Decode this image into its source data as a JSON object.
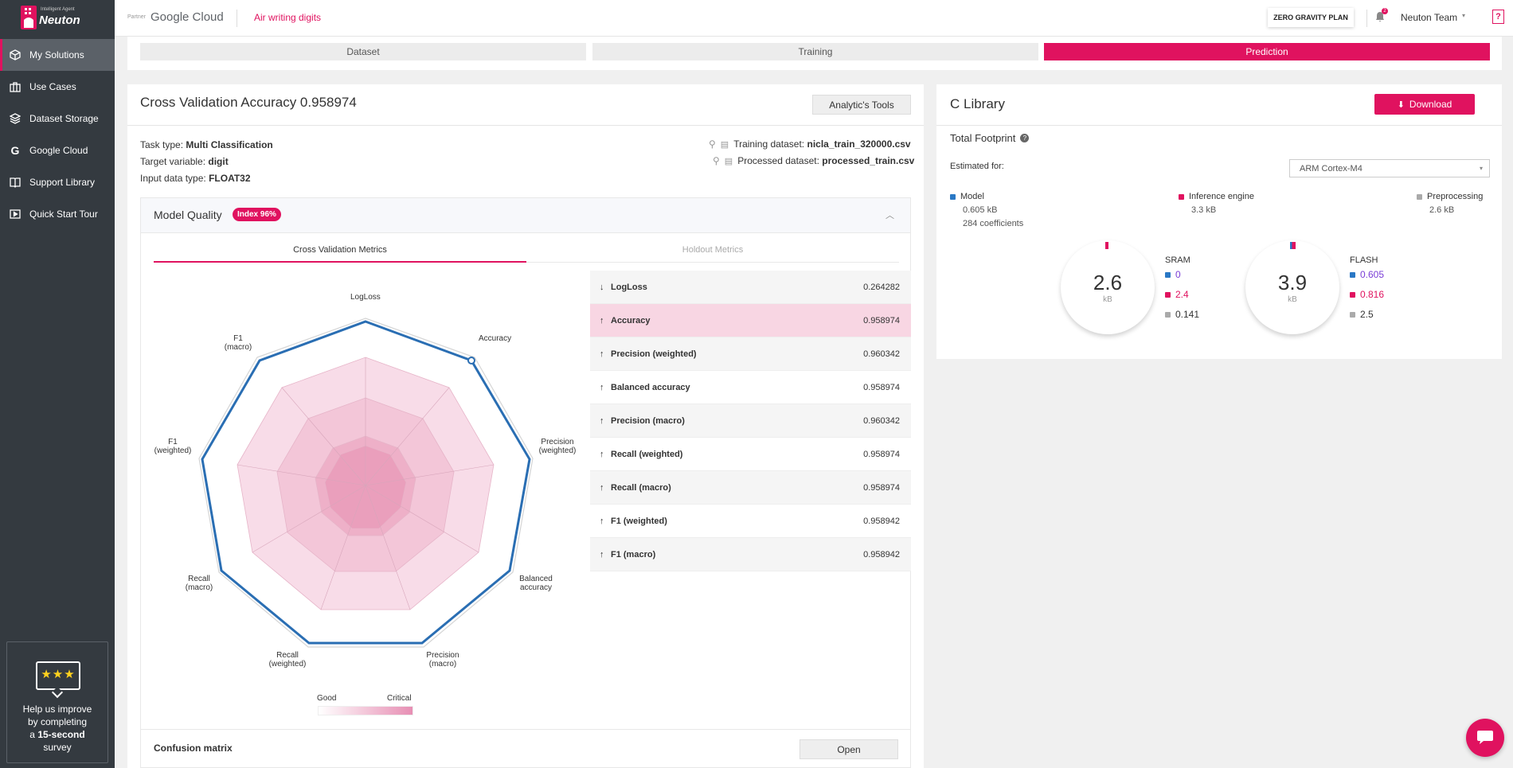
{
  "app": {
    "logo_tagline": "Intelligent Agent",
    "logo_name": "Neuton",
    "partner_label": "Partner",
    "partner_name": "Google Cloud",
    "project_name": "Air writing digits",
    "plan_label": "ZERO GRAVITY PLAN",
    "notification_count": "2",
    "team_name": "Neuton Team",
    "help_label": "?"
  },
  "sidebar": {
    "items": [
      {
        "label": "My Solutions",
        "icon": "cube-icon"
      },
      {
        "label": "Use Cases",
        "icon": "briefcase-icon"
      },
      {
        "label": "Dataset Storage",
        "icon": "layers-icon"
      },
      {
        "label": "Google Cloud",
        "icon": "google-icon"
      },
      {
        "label": "Support Library",
        "icon": "book-icon"
      },
      {
        "label": "Quick Start Tour",
        "icon": "play-icon"
      }
    ],
    "survey": {
      "line1": "Help us improve",
      "line2": "by completing",
      "line3_prefix": "a",
      "line3_bold": "15-second",
      "line4": "survey"
    }
  },
  "tabs": [
    "Dataset",
    "Training",
    "Prediction"
  ],
  "validation": {
    "title": "Cross Validation Accuracy 0.958974",
    "tools_button": "Analytic's Tools",
    "task_type_label": "Task type:",
    "task_type_value": "Multi Classification",
    "target_label": "Target variable:",
    "target_value": "digit",
    "input_type_label": "Input data type:",
    "input_type_value": "FLOAT32",
    "training_dataset_label": "Training dataset:",
    "training_dataset_value": "nicla_train_320000.csv",
    "processed_dataset_label": "Processed dataset:",
    "processed_dataset_value": "processed_train.csv"
  },
  "model_quality": {
    "title": "Model Quality",
    "badge": "Index 96%",
    "tab_active": "Cross Validation Metrics",
    "tab_inactive": "Holdout Metrics",
    "radar_labels": [
      "LogLoss",
      "Accuracy",
      "Precision (weighted)",
      "Balanced accuracy",
      "Precision (macro)",
      "Recall (weighted)",
      "Recall (macro)",
      "F1 (weighted)",
      "F1 (macro)"
    ],
    "scale_good": "Good",
    "scale_critical": "Critical",
    "metrics": [
      {
        "name": "LogLoss",
        "value": "0.264282",
        "dir": "down"
      },
      {
        "name": "Accuracy",
        "value": "0.958974",
        "dir": "up"
      },
      {
        "name": "Precision (weighted)",
        "value": "0.960342",
        "dir": "up"
      },
      {
        "name": "Balanced accuracy",
        "value": "0.958974",
        "dir": "up"
      },
      {
        "name": "Precision (macro)",
        "value": "0.960342",
        "dir": "up"
      },
      {
        "name": "Recall (weighted)",
        "value": "0.958974",
        "dir": "up"
      },
      {
        "name": "Recall (macro)",
        "value": "0.958974",
        "dir": "up"
      },
      {
        "name": "F1 (weighted)",
        "value": "0.958942",
        "dir": "up"
      },
      {
        "name": "F1 (macro)",
        "value": "0.958942",
        "dir": "up"
      }
    ],
    "confusion_label": "Confusion matrix",
    "open_button": "Open"
  },
  "c_library": {
    "title": "C Library",
    "download_button": "Download",
    "footprint_title": "Total Footprint",
    "estimated_label": "Estimated for:",
    "estimated_value": "ARM Cortex-M4",
    "model_label": "Model",
    "model_size": "0.605 kB",
    "model_coeffs": "284 coefficients",
    "engine_label": "Inference engine",
    "engine_size": "3.3 kB",
    "pre_label": "Preprocessing",
    "pre_size": "2.6 kB",
    "sram_value": "2.6",
    "sram_unit": "kB",
    "sram_label": "SRAM",
    "sram_items": [
      "0",
      "2.4",
      "0.141"
    ],
    "flash_value": "3.9",
    "flash_unit": "kB",
    "flash_label": "FLASH",
    "flash_items": [
      "0.605",
      "0.816",
      "2.5"
    ]
  },
  "colors": {
    "accent": "#e0125f",
    "model_blue": "#2a78c5",
    "preproc_gray": "#aaaaaa",
    "sidebar": "#343a40"
  }
}
